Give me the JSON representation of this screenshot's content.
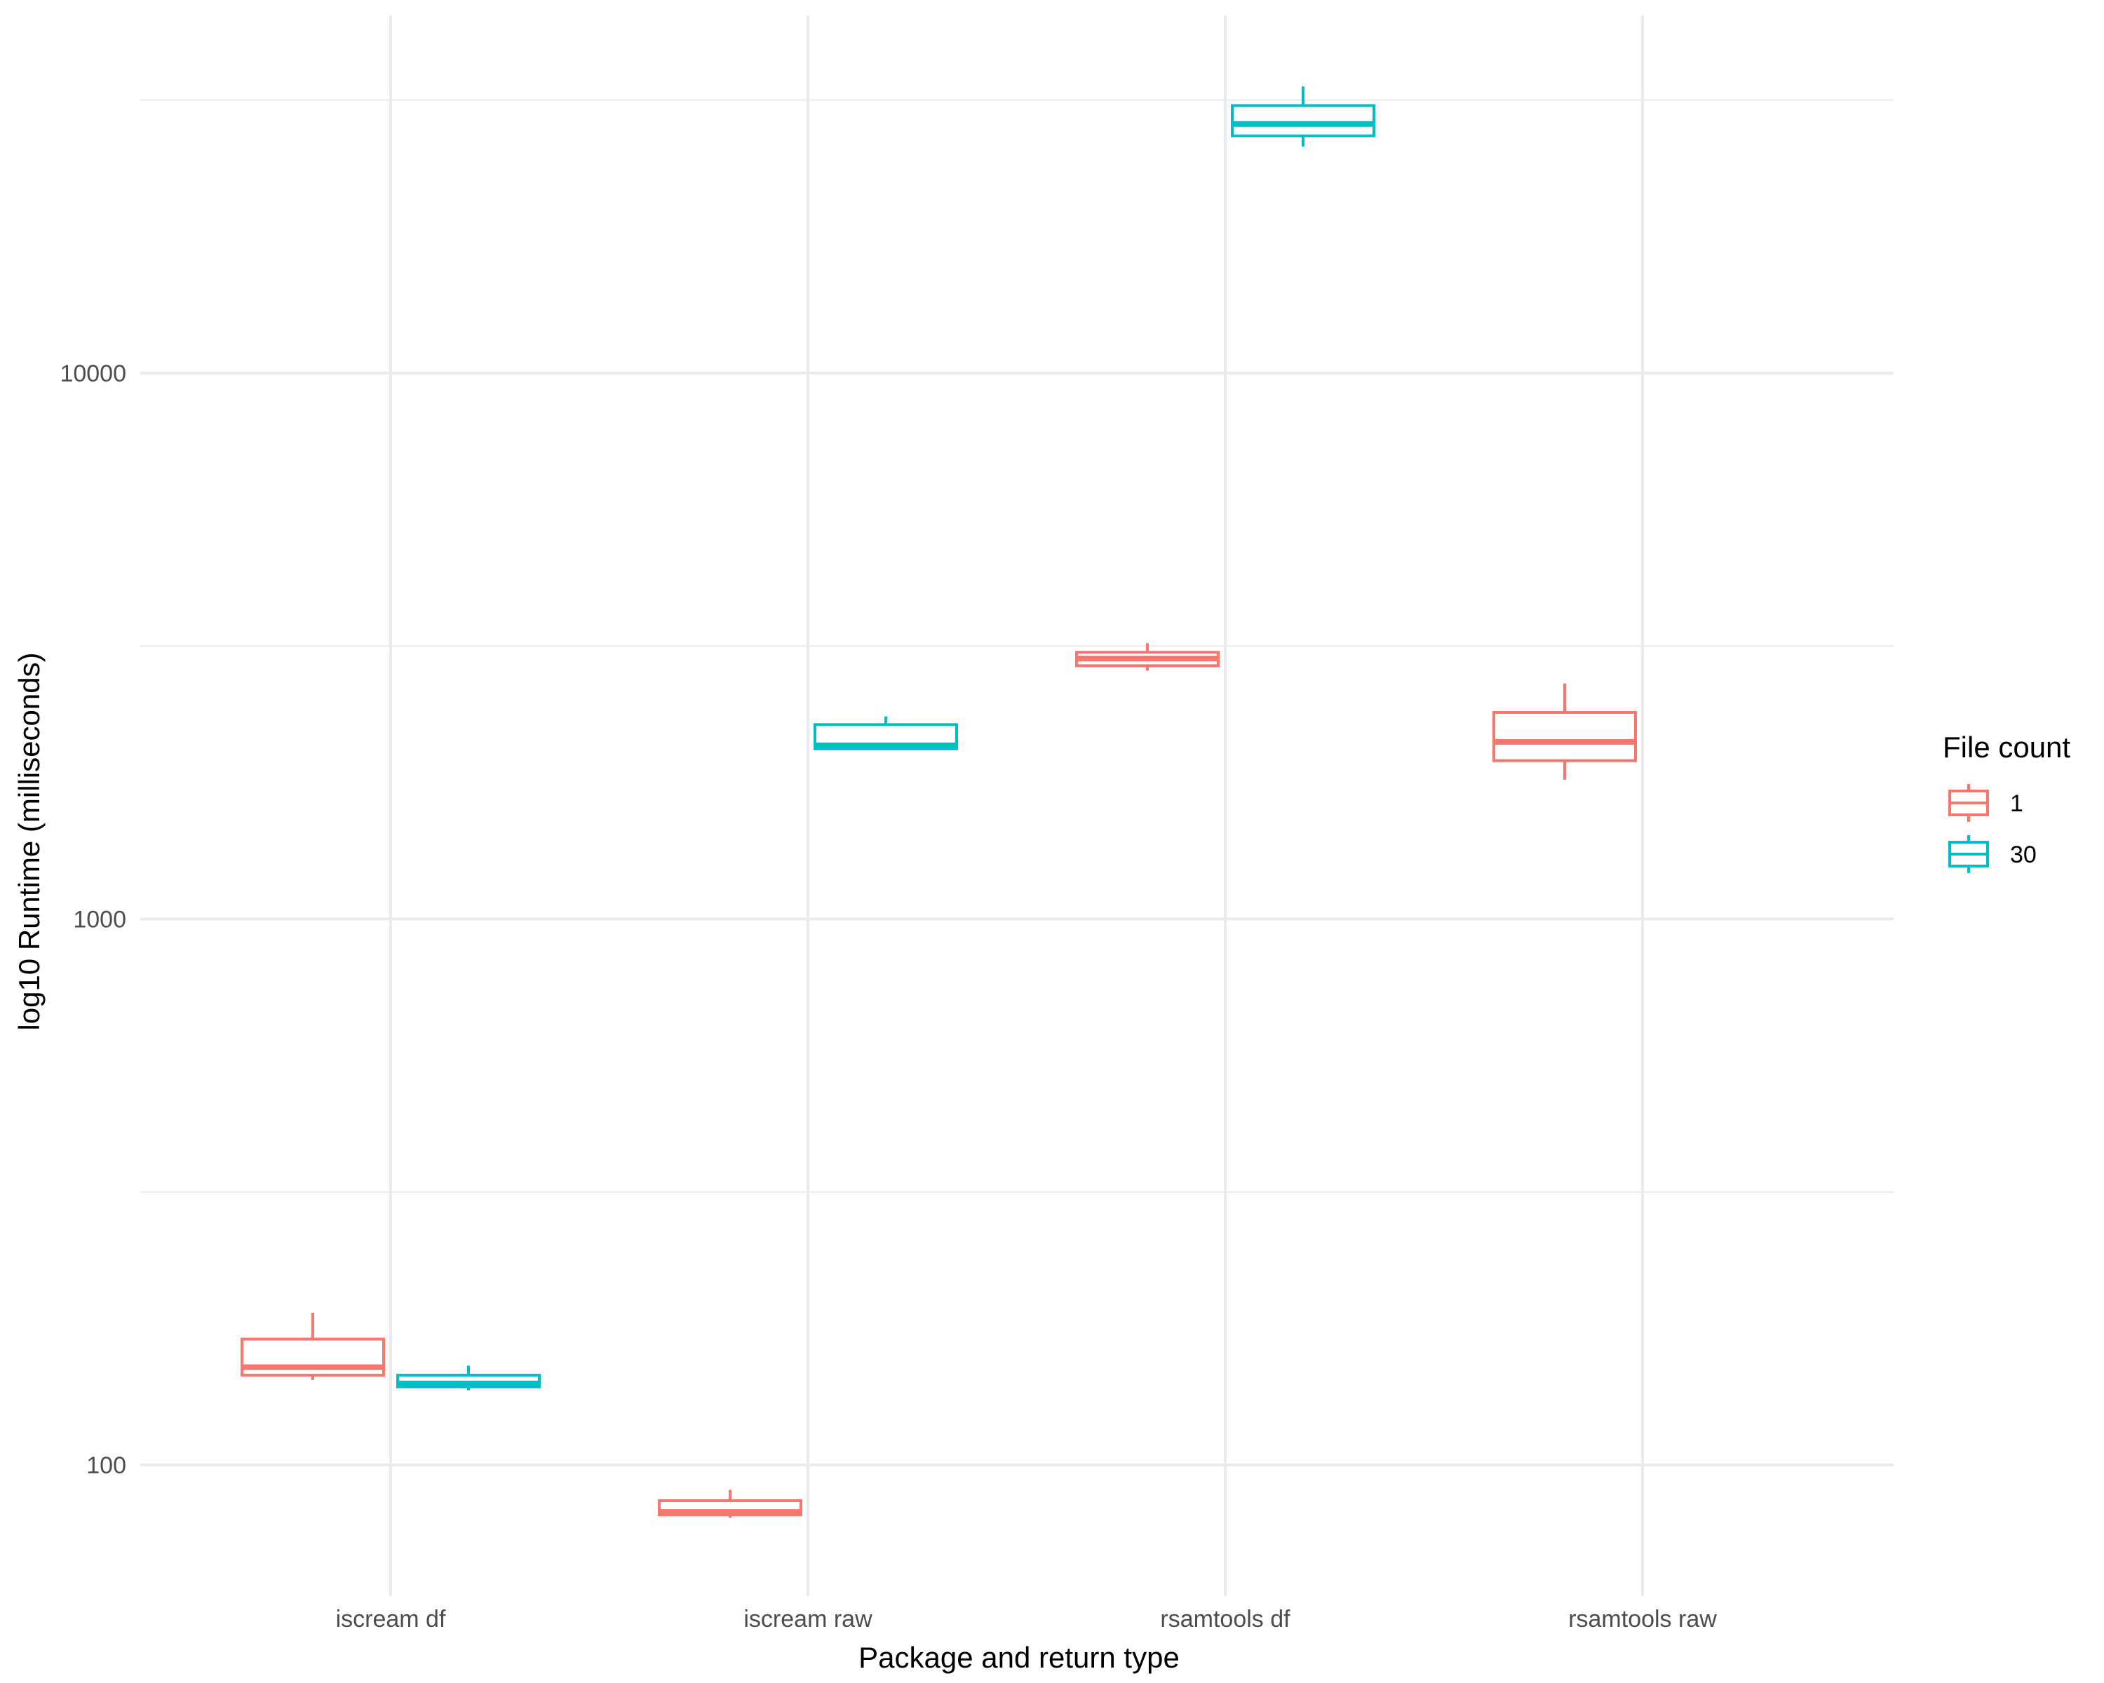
{
  "chart_data": {
    "type": "boxplot",
    "xlabel": "Package and return type",
    "ylabel": "log10 Runtime (milliseconds)",
    "y_scale": "log10",
    "ylim": [
      60,
      55000
    ],
    "y_ticks": [
      100,
      1000,
      10000
    ],
    "y_tick_labels": [
      "100",
      "1000",
      "10000"
    ],
    "grid": true,
    "legend_position": "right",
    "legend_title": "File count",
    "categories": [
      "iscream df",
      "iscream raw",
      "rsamtools df",
      "rsamtools raw"
    ],
    "series": [
      {
        "name": "1",
        "color": "#F8766D",
        "boxes": [
          {
            "category": "iscream df",
            "min": 143,
            "q1": 146,
            "median": 151,
            "q3": 170,
            "max": 190
          },
          {
            "category": "iscream raw",
            "min": 80,
            "q1": 81,
            "median": 82,
            "q3": 86,
            "max": 90
          },
          {
            "category": "rsamtools df",
            "min": 2850,
            "q1": 2910,
            "median": 3000,
            "q3": 3080,
            "max": 3200
          },
          {
            "category": "rsamtools raw",
            "min": 1800,
            "q1": 1950,
            "median": 2110,
            "q3": 2390,
            "max": 2700
          }
        ]
      },
      {
        "name": "30",
        "color": "#00BFC4",
        "boxes": [
          {
            "category": "iscream df",
            "min": 137,
            "q1": 139,
            "median": 141,
            "q3": 146,
            "max": 152
          },
          {
            "category": "iscream raw",
            "min": 2040,
            "q1": 2050,
            "median": 2080,
            "q3": 2270,
            "max": 2350
          },
          {
            "category": "rsamtools df",
            "min": 26000,
            "q1": 27200,
            "median": 28600,
            "q3": 30900,
            "max": 33500
          },
          {
            "category": "rsamtools raw",
            "min": null,
            "q1": null,
            "median": null,
            "q3": null,
            "max": null
          }
        ]
      }
    ]
  }
}
